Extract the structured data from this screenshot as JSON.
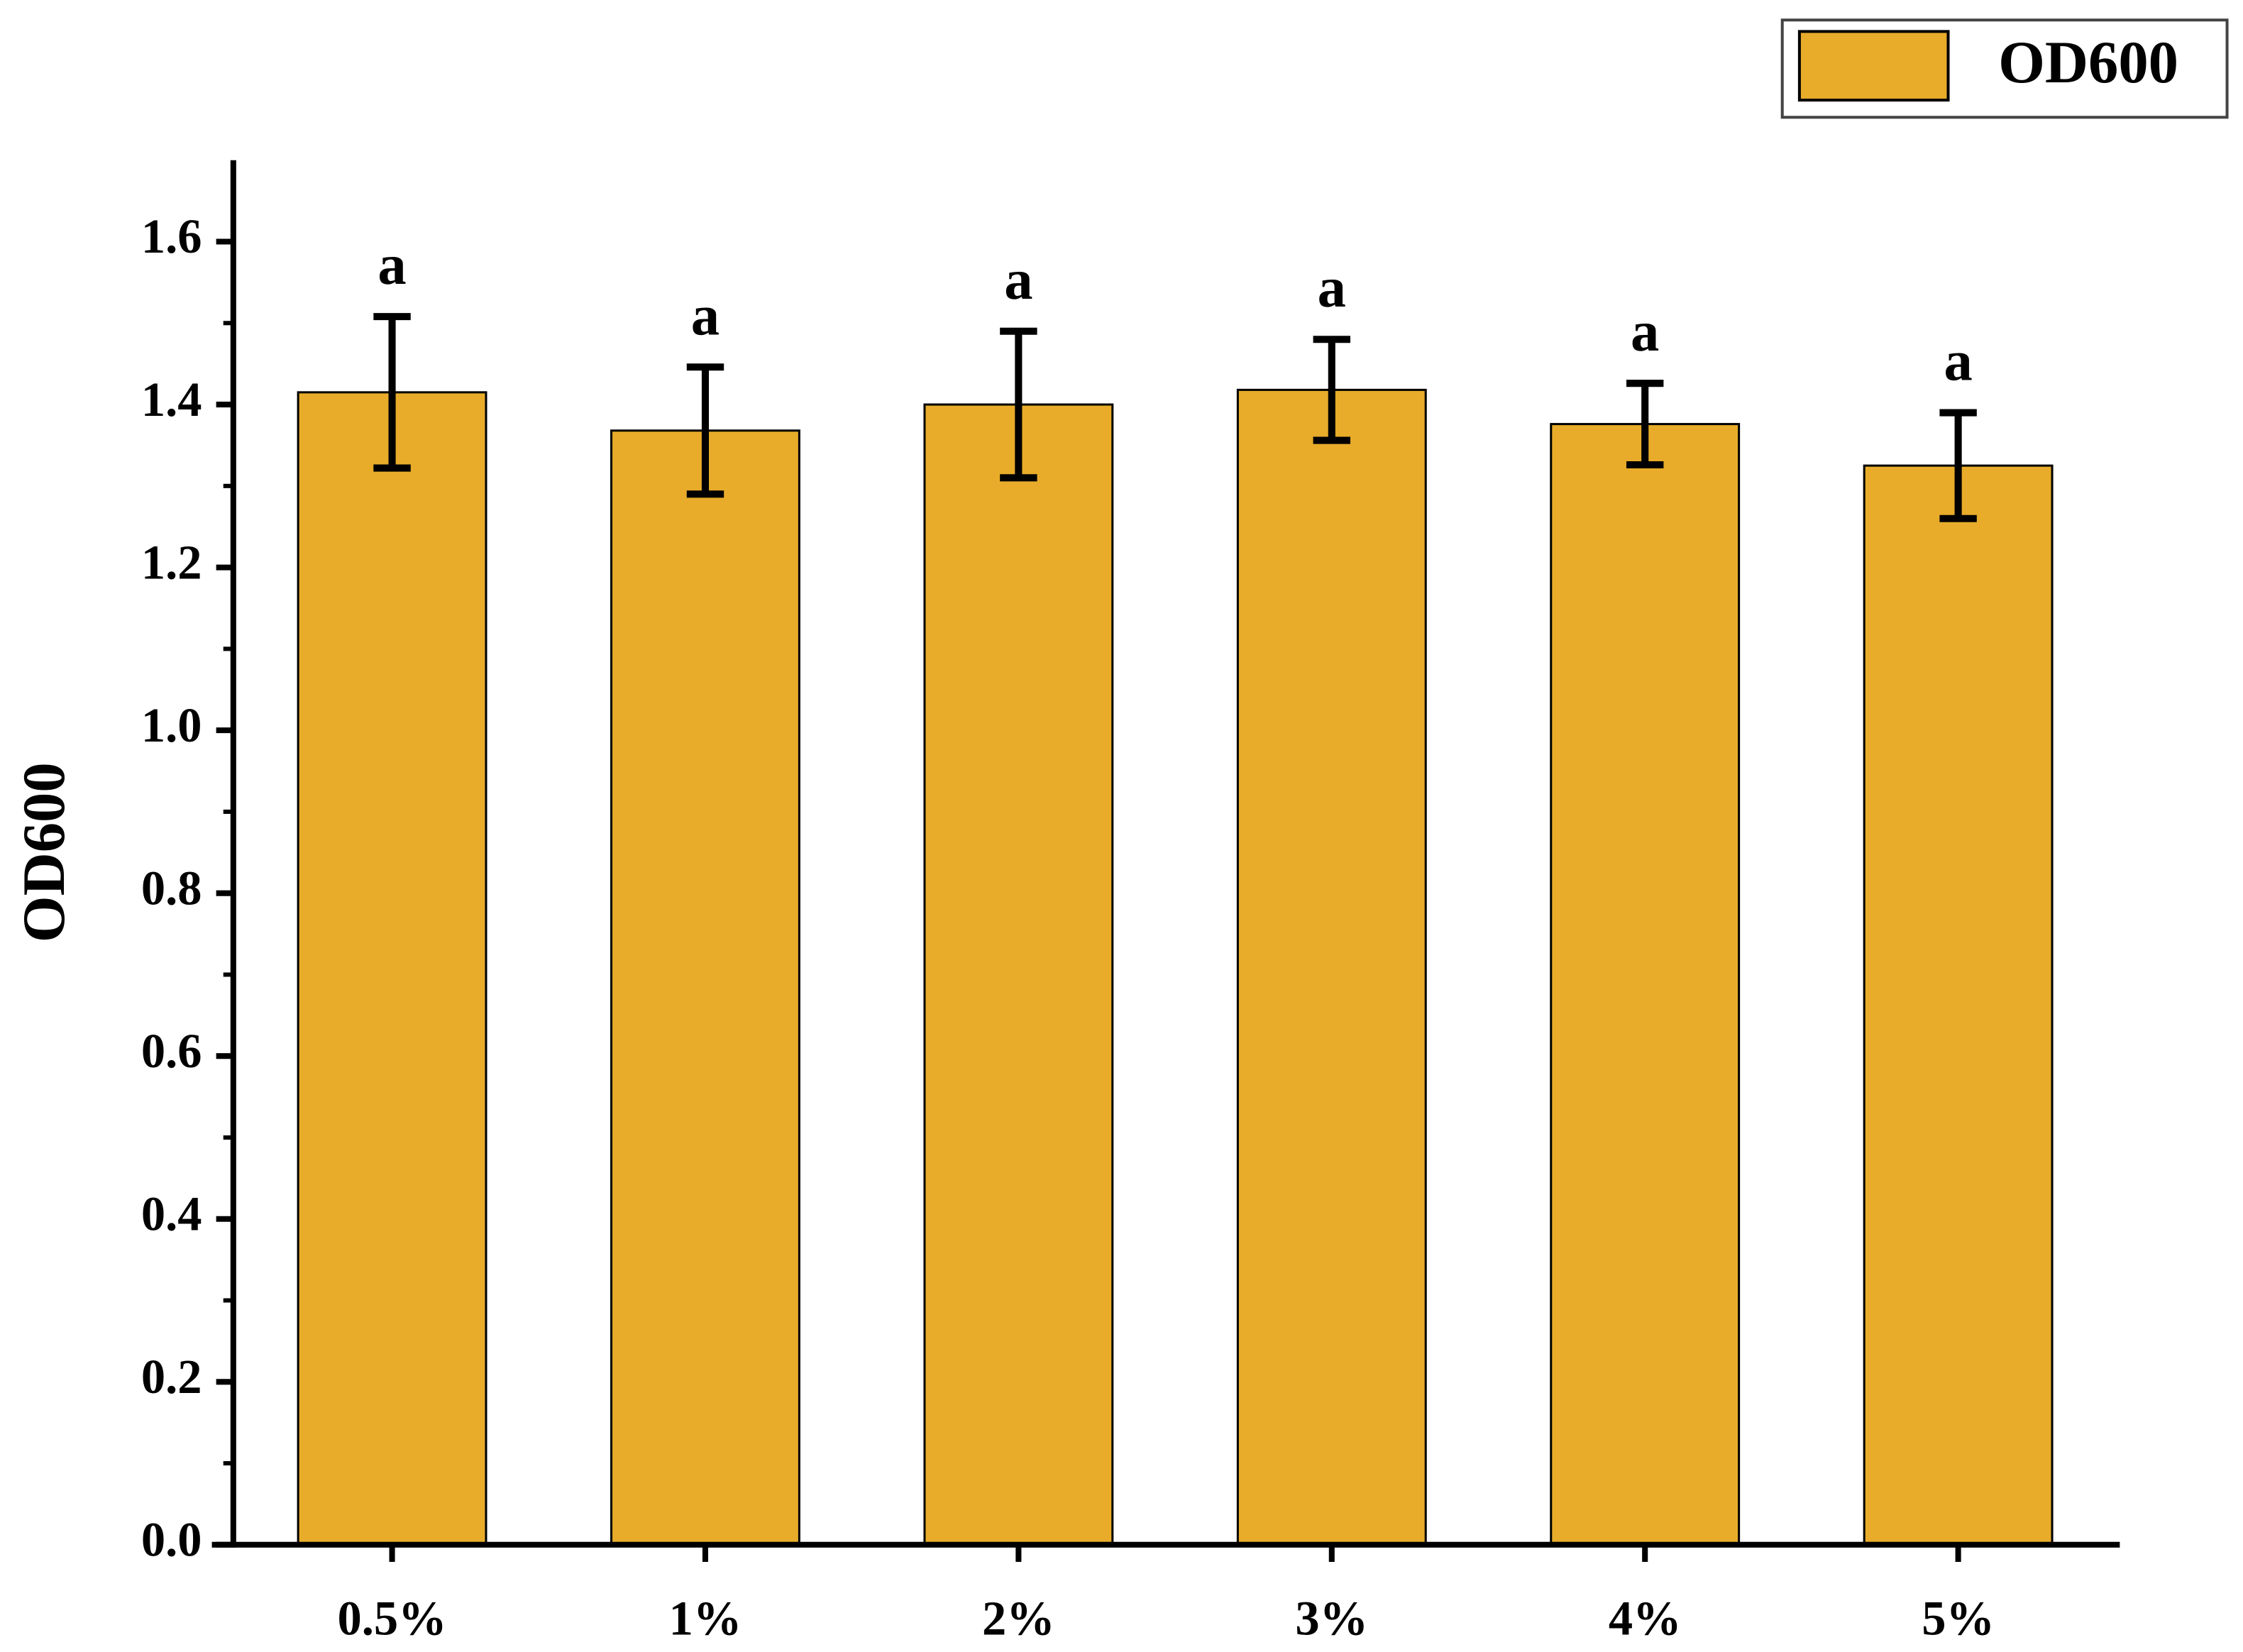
{
  "chart_data": {
    "type": "bar",
    "y_label": "OD600",
    "categories": [
      "0.5%",
      "1%",
      "2%",
      "3%",
      "4%",
      "5%"
    ],
    "series": [
      {
        "name": "OD600",
        "color": "#e8ac2a",
        "values": [
          1.415,
          1.368,
          1.4,
          1.418,
          1.376,
          1.325
        ],
        "errors": [
          0.093,
          0.078,
          0.09,
          0.062,
          0.05,
          0.065
        ],
        "annotations": [
          "a",
          "a",
          "a",
          "a",
          "a",
          "a"
        ]
      }
    ],
    "ylim": [
      0,
      1.7
    ],
    "yticks": [
      {
        "value": 0,
        "label": "0.0"
      },
      0.2,
      0.4,
      0.6,
      0.8,
      {
        "value": 1,
        "label": "1.0"
      },
      1.2,
      1.4,
      1.6
    ],
    "legend": "top-right"
  }
}
